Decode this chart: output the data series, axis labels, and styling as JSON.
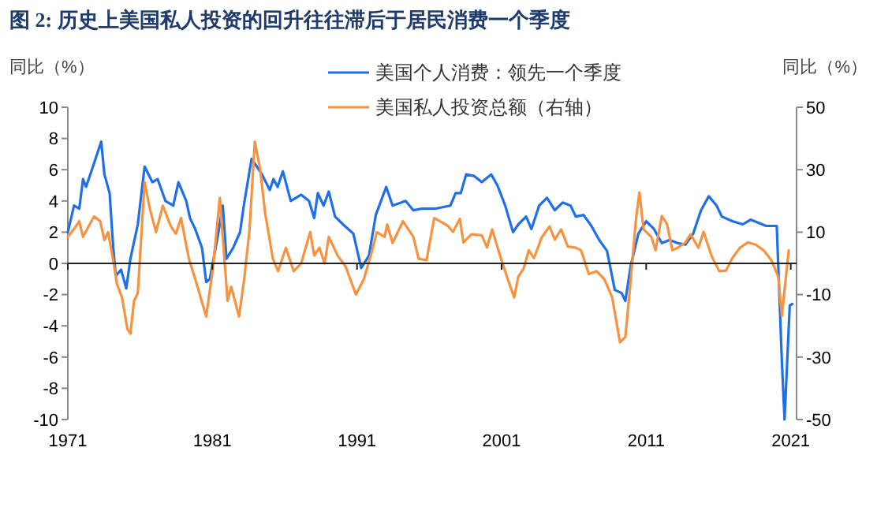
{
  "chart_data": {
    "type": "line",
    "title": "图 2: 历史上美国私人投资的回升往往滞后于居民消费一个季度",
    "ylabel": "同比（%）",
    "y2label": "同比（%）",
    "xlim": [
      1971,
      2021.4
    ],
    "xticks": [
      1971,
      1981,
      1991,
      2001,
      2011,
      2021
    ],
    "ylim": [
      -10,
      10
    ],
    "yticks": [
      -10,
      -8,
      -6,
      -4,
      -2,
      0,
      2,
      4,
      6,
      8,
      10
    ],
    "y2lim": [
      -50,
      50
    ],
    "y2ticks": [
      -50,
      -30,
      -10,
      10,
      30,
      50
    ],
    "legend": "top",
    "marker": "none",
    "line_style": "solid",
    "series": [
      {
        "name": "美国个人消费：领先一个季度",
        "color": "#1f6fe8",
        "x": [
          1971.0,
          1971.43,
          1971.79,
          1972.05,
          1972.26,
          1972.7,
          1973.31,
          1973.53,
          1973.89,
          1974.14,
          1974.32,
          1974.68,
          1975.04,
          1975.33,
          1975.84,
          1976.31,
          1976.85,
          1977.21,
          1977.75,
          1978.29,
          1978.65,
          1979.19,
          1979.45,
          1979.81,
          1980.28,
          1980.57,
          1980.82,
          1981.36,
          1981.72,
          1981.97,
          1982.44,
          1982.91,
          1983.17,
          1983.71,
          1984.43,
          1984.97,
          1985.22,
          1985.51,
          1985.87,
          1986.42,
          1987.14,
          1987.68,
          1988.04,
          1988.29,
          1988.69,
          1989.05,
          1989.48,
          1990.03,
          1990.75,
          1991.29,
          1991.83,
          1992.3,
          1993.02,
          1993.46,
          1994.36,
          1994.9,
          1995.44,
          1996.38,
          1996.92,
          1997.46,
          1997.82,
          1998.18,
          1998.55,
          1999.09,
          1999.63,
          2000.28,
          2000.71,
          2001.25,
          2001.79,
          2002.16,
          2002.7,
          2003.06,
          2003.6,
          2004.14,
          2004.68,
          2005.22,
          2005.77,
          2006.13,
          2006.67,
          2007.21,
          2007.75,
          2008.29,
          2008.83,
          2009.3,
          2009.56,
          2009.92,
          2010.46,
          2011.0,
          2011.54,
          2012.08,
          2012.62,
          2013.17,
          2013.71,
          2014.25,
          2014.79,
          2015.33,
          2015.87,
          2016.23,
          2016.96,
          2017.68,
          2018.22,
          2018.76,
          2019.3,
          2020.03,
          2020.39,
          2020.57,
          2020.93,
          2021.11
        ],
        "values": [
          2.0,
          3.7,
          3.5,
          5.4,
          4.9,
          6.1,
          7.8,
          5.7,
          4.5,
          1.0,
          -0.8,
          -0.4,
          -1.6,
          0.3,
          2.5,
          6.2,
          5.2,
          5.4,
          4.0,
          3.7,
          5.2,
          4.0,
          2.9,
          2.2,
          1.0,
          -1.2,
          -1.0,
          1.7,
          3.7,
          0.3,
          1.0,
          2.0,
          3.7,
          6.7,
          5.7,
          4.7,
          5.4,
          4.9,
          5.9,
          4.0,
          4.4,
          4.0,
          2.9,
          4.5,
          3.7,
          4.6,
          3.0,
          2.5,
          1.9,
          -0.3,
          0.5,
          3.1,
          4.9,
          3.7,
          4.0,
          3.4,
          3.5,
          3.5,
          3.6,
          3.7,
          4.5,
          4.5,
          5.7,
          5.6,
          5.2,
          5.7,
          5.0,
          3.7,
          2.0,
          2.5,
          3.0,
          2.2,
          3.7,
          4.2,
          3.4,
          3.9,
          3.7,
          3.0,
          3.1,
          2.4,
          1.5,
          0.8,
          -1.7,
          -1.9,
          -2.4,
          -0.2,
          1.9,
          2.7,
          2.2,
          1.3,
          1.5,
          1.3,
          1.2,
          1.9,
          3.4,
          4.3,
          3.7,
          3.0,
          2.7,
          2.5,
          2.8,
          2.6,
          2.4,
          2.4,
          -6.4,
          -10,
          -2.7,
          -2.6
        ]
      },
      {
        "name": "美国私人投资总额（右轴）",
        "color": "#f79240",
        "axis": "y2",
        "x": [
          1971.0,
          1971.43,
          1971.79,
          1972.05,
          1972.34,
          1972.81,
          1973.24,
          1973.53,
          1973.78,
          1974.14,
          1974.39,
          1974.75,
          1975.12,
          1975.33,
          1975.58,
          1975.84,
          1976.31,
          1976.67,
          1977.1,
          1977.57,
          1978.11,
          1978.47,
          1978.83,
          1979.37,
          1979.81,
          1980.57,
          1981.04,
          1981.51,
          1981.77,
          1982.05,
          1982.3,
          1982.84,
          1983.2,
          1983.57,
          1983.93,
          1984.29,
          1984.65,
          1985.18,
          1985.54,
          1986.08,
          1986.62,
          1987.14,
          1987.76,
          1988.04,
          1988.4,
          1988.76,
          1989.05,
          1989.66,
          1990.21,
          1990.93,
          1991.48,
          1992.01,
          1992.37,
          1992.91,
          1993.09,
          1993.46,
          1994.18,
          1994.9,
          1995.26,
          1995.81,
          1996.34,
          1996.74,
          1997.28,
          1997.64,
          1998.11,
          1998.36,
          1998.91,
          1999.63,
          1999.99,
          2000.35,
          2000.89,
          2001.43,
          2001.87,
          2002.16,
          2002.52,
          2002.88,
          2003.24,
          2003.78,
          2004.32,
          2004.68,
          2005.12,
          2005.58,
          2006.13,
          2006.49,
          2007.03,
          2007.57,
          2008.11,
          2008.65,
          2009.19,
          2009.56,
          2009.92,
          2010.28,
          2010.53,
          2010.82,
          2011.36,
          2011.65,
          2012.08,
          2012.44,
          2012.81,
          2013.17,
          2013.71,
          2014.07,
          2014.61,
          2014.97,
          2015.51,
          2016.05,
          2016.52,
          2016.96,
          2017.5,
          2018.04,
          2018.58,
          2019.12,
          2019.66,
          2020.13,
          2020.39,
          2020.57,
          2020.86
        ],
        "values": [
          8.5,
          11,
          13.5,
          8.5,
          11,
          15,
          13.5,
          7.5,
          10,
          1,
          -6.5,
          -11,
          -21,
          -22.5,
          -12,
          -9.5,
          26,
          17.5,
          10,
          18.5,
          12,
          9.5,
          14.5,
          1.5,
          -5,
          -17,
          -1.5,
          21,
          5,
          -12,
          -7.5,
          -17,
          -5,
          11,
          39,
          30.5,
          16,
          1.5,
          -2.5,
          5,
          -2.5,
          0,
          10,
          2.5,
          5,
          0,
          8.5,
          2.5,
          -1,
          -10,
          -5,
          3.5,
          10,
          8.5,
          12.5,
          6.5,
          13.5,
          8.5,
          1.5,
          1,
          14.5,
          13.5,
          12,
          10.1,
          14.3,
          6.7,
          9.3,
          9,
          5.1,
          10.9,
          2.5,
          -5.1,
          -10.9,
          -4.2,
          -1.7,
          4.2,
          1.7,
          8.4,
          11.8,
          7.6,
          10.9,
          5.4,
          5,
          4.2,
          -3.4,
          -2.5,
          -5.1,
          -10.9,
          -25.3,
          -23.6,
          -5.9,
          13.5,
          22.7,
          10.9,
          8.4,
          4.2,
          15.2,
          12.6,
          4.2,
          5,
          6.7,
          9.3,
          5,
          10.1,
          2.5,
          -2.5,
          -2.3,
          1.7,
          5.1,
          6.7,
          6,
          4.2,
          1,
          -4.2,
          -16.8,
          -8.4,
          4.2
        ]
      }
    ]
  }
}
